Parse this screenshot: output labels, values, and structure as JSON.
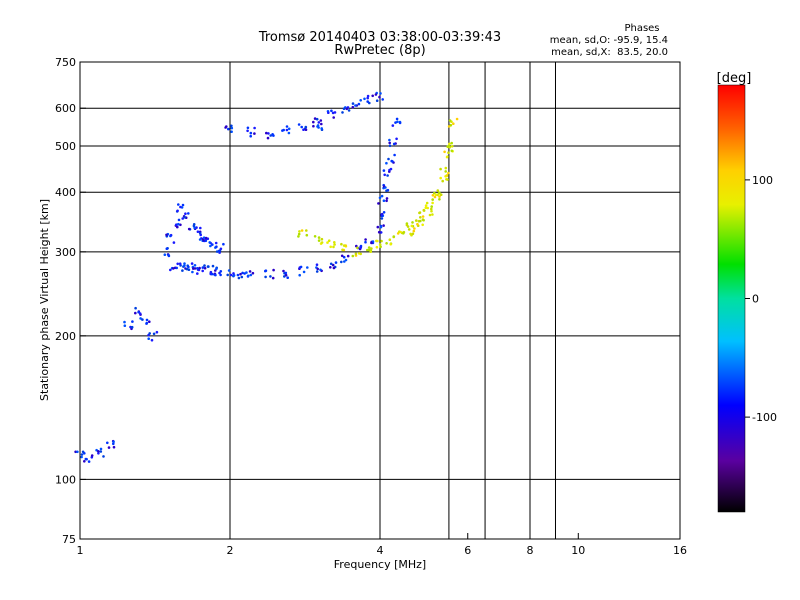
{
  "chart_data": {
    "type": "scatter",
    "title": "Tromsø 20140403 03:38:00-03:39:43",
    "subtitle": "RwPretec (8p)",
    "xlabel": "Frequency [MHz]",
    "ylabel": "Stationary phase Virtual Height [km]",
    "x_scale": "log",
    "y_scale": "log",
    "xlim": [
      1,
      16
    ],
    "ylim": [
      75,
      750
    ],
    "x_ticks": [
      1,
      2,
      4,
      6,
      8,
      10,
      16
    ],
    "x_tick_labels": [
      "1",
      "2",
      "4",
      "6",
      "8",
      "10",
      "16"
    ],
    "x_grid": [
      2,
      4,
      5.5,
      6.5,
      8,
      9
    ],
    "y_ticks": [
      75,
      100,
      200,
      300,
      400,
      500,
      600,
      750
    ],
    "y_tick_labels": [
      "75",
      "100",
      "200",
      "300",
      "400",
      "500",
      "600",
      "750"
    ],
    "y_grid": [
      100,
      200,
      300,
      400,
      500,
      600
    ],
    "grid": true,
    "stats": {
      "heading": "Phases",
      "line_o": "mean, sd,O: -95.9, 15.4",
      "line_x": "mean, sd,X:  83.5, 20.0"
    },
    "colorbar": {
      "label": "[deg]",
      "range": [
        -180,
        180
      ],
      "ticks": [
        100,
        0,
        -100
      ],
      "tick_labels": [
        "100",
        "0",
        "-100"
      ],
      "position": "right"
    },
    "series": [
      {
        "polarization": "O",
        "mean_phase": -95.9,
        "traces": [
          {
            "x": [
              1.55,
              1.6,
              1.65,
              1.7,
              1.75,
              1.8,
              1.85,
              1.9,
              2.0,
              2.1,
              2.2,
              2.4,
              2.6,
              2.8,
              3.0,
              3.2,
              3.4,
              3.6,
              3.8,
              4.0
            ],
            "y": [
              280,
              279,
              278,
              277,
              276,
              275,
              274,
              273,
              271,
              270,
              269,
              269,
              270,
              273,
              277,
              283,
              291,
              302,
              316,
              334
            ]
          },
          {
            "x": [
              1.48,
              1.52,
              1.56,
              1.6,
              1.64,
              1.68,
              1.72,
              1.76,
              1.8,
              1.85,
              1.9
            ],
            "y": [
              300,
              320,
              345,
              370,
              360,
              340,
              330,
              320,
              315,
              310,
              305
            ]
          },
          {
            "x": [
              4.0,
              4.05,
              4.1,
              4.15,
              4.2,
              4.25,
              4.3
            ],
            "y": [
              360,
              385,
              410,
              440,
              470,
              510,
              560
            ]
          },
          {
            "x": [
              3.0,
              3.2,
              3.4,
              3.6,
              3.8,
              4.0
            ],
            "y": [
              560,
              580,
              600,
              615,
              625,
              635
            ]
          },
          {
            "x": [
              2.0,
              2.2,
              2.4,
              2.6,
              2.8,
              3.0
            ],
            "y": [
              540,
              535,
              530,
              540,
              545,
              550
            ]
          },
          {
            "x": [
              1.0,
              1.04,
              1.1,
              1.15
            ],
            "y": [
              112,
              111,
              114,
              118
            ]
          },
          {
            "x": [
              1.25,
              1.3,
              1.35,
              1.4
            ],
            "y": [
              210,
              225,
              215,
              200
            ]
          }
        ]
      },
      {
        "polarization": "X",
        "mean_phase": 83.5,
        "traces": [
          {
            "x": [
              3.6,
              3.8,
              4.0,
              4.2,
              4.4,
              4.6,
              4.8,
              5.0,
              5.2,
              5.4,
              5.5
            ],
            "y": [
              300,
              305,
              310,
              318,
              328,
              340,
              355,
              375,
              400,
              440,
              500
            ]
          },
          {
            "x": [
              4.6,
              4.8,
              5.0,
              5.2,
              5.4,
              5.5,
              5.6
            ],
            "y": [
              330,
              345,
              365,
              390,
              430,
              480,
              560
            ]
          },
          {
            "x": [
              2.8,
              3.0,
              3.2,
              3.4
            ],
            "y": [
              330,
              318,
              310,
              305
            ]
          }
        ]
      }
    ]
  }
}
